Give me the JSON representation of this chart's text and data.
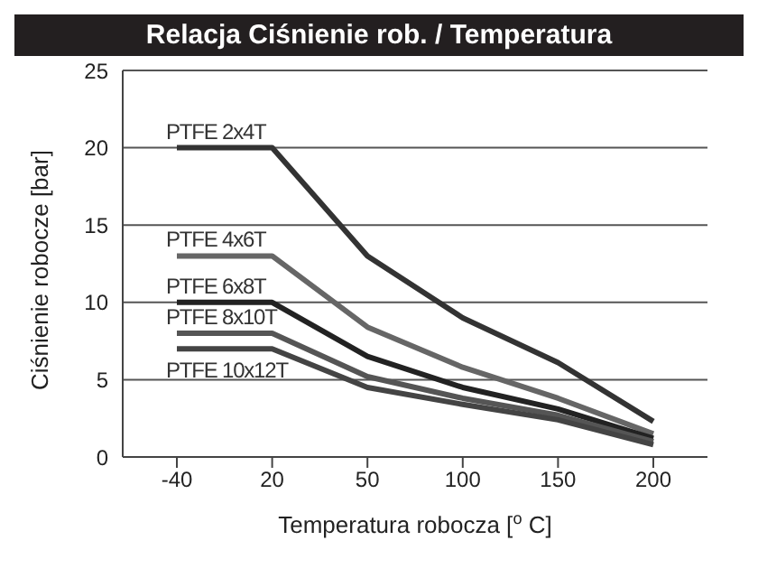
{
  "chart_data": {
    "type": "line",
    "title": "Relacja Ciśnienie rob. / Temperatura",
    "xlabel": "Temperatura robocza [$^{o}$ C]",
    "ylabel": "Ciśnienie robocze [bar]",
    "categories": [
      "-40",
      "20",
      "50",
      "100",
      "150",
      "200"
    ],
    "series": [
      {
        "name": "PTFE 2x4T",
        "color": "#333333",
        "values": [
          20,
          20,
          13,
          9,
          6.1,
          2.3
        ]
      },
      {
        "name": "PTFE 4x6T",
        "color": "#666666",
        "values": [
          13,
          13,
          8.4,
          5.8,
          3.8,
          1.5
        ]
      },
      {
        "name": "PTFE 6x8T",
        "color": "#222222",
        "values": [
          10,
          10,
          6.5,
          4.5,
          3.1,
          1.2
        ]
      },
      {
        "name": "PTFE 8x10T",
        "color": "#555555",
        "values": [
          8,
          8,
          5.2,
          3.8,
          2.7,
          1
        ]
      },
      {
        "name": "PTFE 10x12T",
        "color": "#444444",
        "values": [
          7,
          7,
          4.5,
          3.4,
          2.4,
          0.8
        ]
      }
    ],
    "ylim": [
      0,
      25
    ],
    "yticks": [
      0,
      5,
      10,
      15,
      20,
      25
    ],
    "grid": "y",
    "legend": false,
    "marker": "none",
    "line_style": "solid"
  }
}
